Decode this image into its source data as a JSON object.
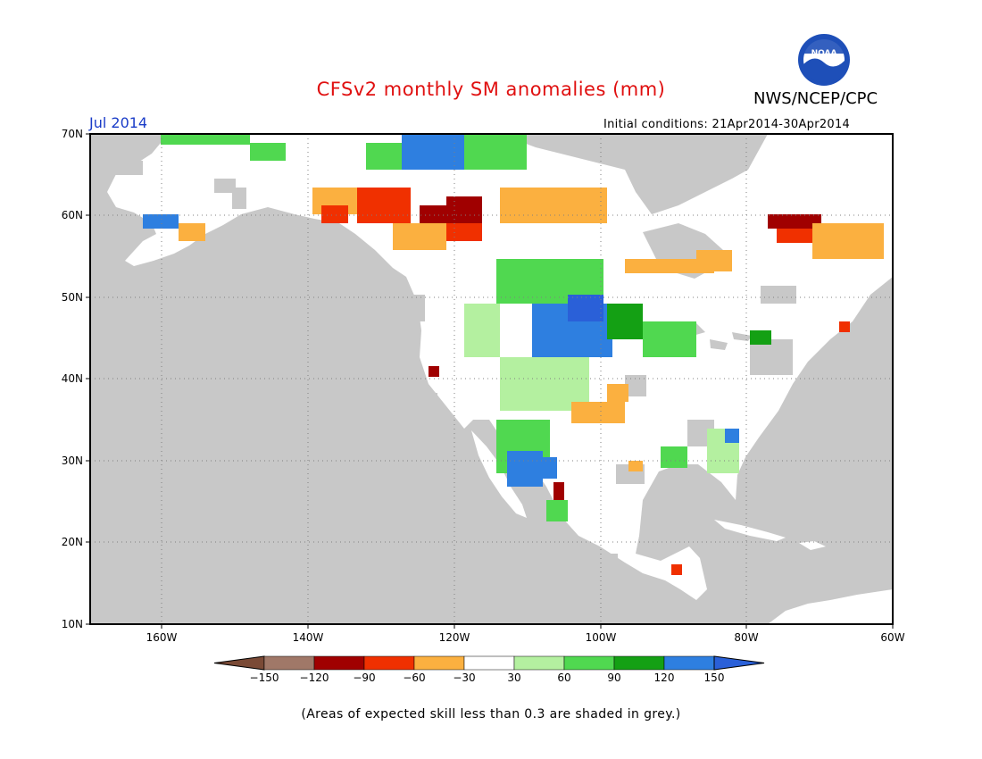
{
  "header": {
    "title": "CFSv2 monthly SM anomalies (mm)",
    "organization": "NWS/NCEP/CPC",
    "logo_text": "NOAA",
    "valid_period": "Jul 2014",
    "initial_conditions": "Initial conditions: 21Apr2014-30Apr2014"
  },
  "map": {
    "lat_labels": [
      "70N",
      "60N",
      "50N",
      "40N",
      "30N",
      "20N",
      "10N"
    ],
    "lon_labels": [
      "160W",
      "140W",
      "120W",
      "100W",
      "80W",
      "60W"
    ],
    "ocean_color": "#c8c8c8",
    "land_color": "#ffffff",
    "grid": true
  },
  "legend": {
    "colors": [
      "#7a4a36",
      "#a07868",
      "#a00000",
      "#f03000",
      "#fbb040",
      "#ffffff",
      "#b4f0a0",
      "#50d850",
      "#14a014",
      "#2e7fe0",
      "#2a60d8"
    ],
    "tick_labels": [
      "−150",
      "−120",
      "−90",
      "−60",
      "−30",
      "30",
      "60",
      "90",
      "120",
      "150"
    ]
  },
  "footnote": "(Areas of expected skill less than 0.3 are shaded in grey.)"
}
